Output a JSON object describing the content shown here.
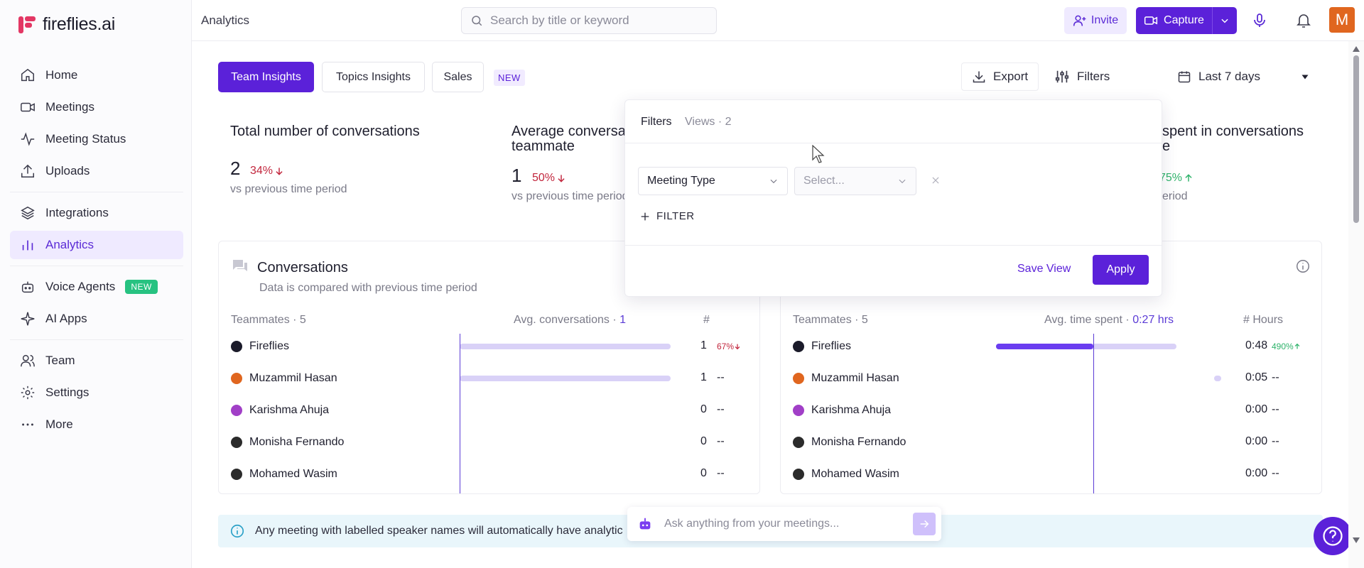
{
  "brand": {
    "name": "fireflies.ai",
    "accent": "#5b21d9",
    "logo_color": "#e33764"
  },
  "sidebar": {
    "items": [
      {
        "label": "Home",
        "icon": "home-icon"
      },
      {
        "label": "Meetings",
        "icon": "video-icon"
      },
      {
        "label": "Meeting Status",
        "icon": "pulse-icon"
      },
      {
        "label": "Uploads",
        "icon": "upload-icon"
      },
      {
        "label": "Integrations",
        "icon": "layers-icon"
      },
      {
        "label": "Analytics",
        "icon": "bar-chart-icon",
        "active": true
      },
      {
        "label": "Voice Agents",
        "icon": "robot-icon",
        "badge": "NEW"
      },
      {
        "label": "AI Apps",
        "icon": "sparkle-icon"
      },
      {
        "label": "Team",
        "icon": "users-icon"
      },
      {
        "label": "Settings",
        "icon": "gear-icon"
      },
      {
        "label": "More",
        "icon": "more-icon"
      }
    ]
  },
  "topbar": {
    "breadcrumb": "Analytics",
    "search_placeholder": "Search by title or keyword",
    "invite_label": "Invite",
    "capture_label": "Capture",
    "avatar_initial": "M"
  },
  "tabs": [
    {
      "label": "Team Insights",
      "active": true
    },
    {
      "label": "Topics Insights"
    },
    {
      "label": "Sales"
    }
  ],
  "new_tag": "NEW",
  "toolbar": {
    "export_label": "Export",
    "filters_label": "Filters",
    "date_range": "Last 7 days"
  },
  "stats": [
    {
      "title": "Total number of conversations",
      "value": "2",
      "delta": "34%",
      "direction": "down",
      "sub": "vs previous time period"
    },
    {
      "title_line1": "Average conversa",
      "title_line2": "teammate",
      "value": "1",
      "delta": "50%",
      "direction": "down",
      "sub": "vs previous time period"
    },
    {
      "title_line1": "spent in conversations",
      "title_line2": "e",
      "delta": "75%",
      "direction": "up",
      "sub": "eriod"
    }
  ],
  "conversations_card": {
    "title": "Conversations",
    "subtitle": "Data is compared with previous time period",
    "teammates_label": "Teammates · 5",
    "avg_label": "Avg. conversations · ",
    "avg_value": "1",
    "count_header": "#",
    "rows": [
      {
        "name": "Fireflies",
        "value": "1",
        "delta": "67%",
        "direction": "down",
        "bar": 1.0,
        "avatar_color": "#1b1b2a"
      },
      {
        "name": "Muzammil Hasan",
        "value": "1",
        "delta": "--",
        "bar": 1.0,
        "avatar_color": "#e0661f"
      },
      {
        "name": "Karishma Ahuja",
        "value": "0",
        "delta": "--",
        "bar": 0,
        "avatar_color": "#a13fc7"
      },
      {
        "name": "Monisha Fernando",
        "value": "0",
        "delta": "--",
        "bar": 0,
        "avatar_color": "#2b2b2b"
      },
      {
        "name": "Mohamed Wasim",
        "value": "0",
        "delta": "--",
        "bar": 0,
        "avatar_color": "#2b2b2b"
      }
    ]
  },
  "time_card": {
    "teammates_label": "Teammates · 5",
    "avg_label": "Avg. time spent · ",
    "avg_value": "0:27 hrs",
    "hours_header": "# Hours",
    "rows": [
      {
        "name": "Fireflies",
        "value": "0:48",
        "delta": "490%",
        "direction": "up",
        "bar": 0.8,
        "avatar_color": "#1b1b2a"
      },
      {
        "name": "Muzammil Hasan",
        "value": "0:05",
        "delta": "--",
        "bar": 0.09,
        "avatar_color": "#e0661f"
      },
      {
        "name": "Karishma Ahuja",
        "value": "0:00",
        "delta": "--",
        "bar": 0,
        "avatar_color": "#a13fc7"
      },
      {
        "name": "Monisha Fernando",
        "value": "0:00",
        "delta": "--",
        "bar": 0,
        "avatar_color": "#2b2b2b"
      },
      {
        "name": "Mohamed Wasim",
        "value": "0:00",
        "delta": "--",
        "bar": 0,
        "avatar_color": "#2b2b2b"
      }
    ]
  },
  "filter_popover": {
    "tab_filters": "Filters",
    "tab_views": "Views · 2",
    "field_select": "Meeting Type",
    "value_placeholder": "Select...",
    "add_filter": "FILTER",
    "save_view": "Save View",
    "apply": "Apply"
  },
  "banner": {
    "text": "Any meeting with labelled speaker names will automatically have analytic"
  },
  "ask": {
    "placeholder": "Ask anything from your meetings..."
  }
}
